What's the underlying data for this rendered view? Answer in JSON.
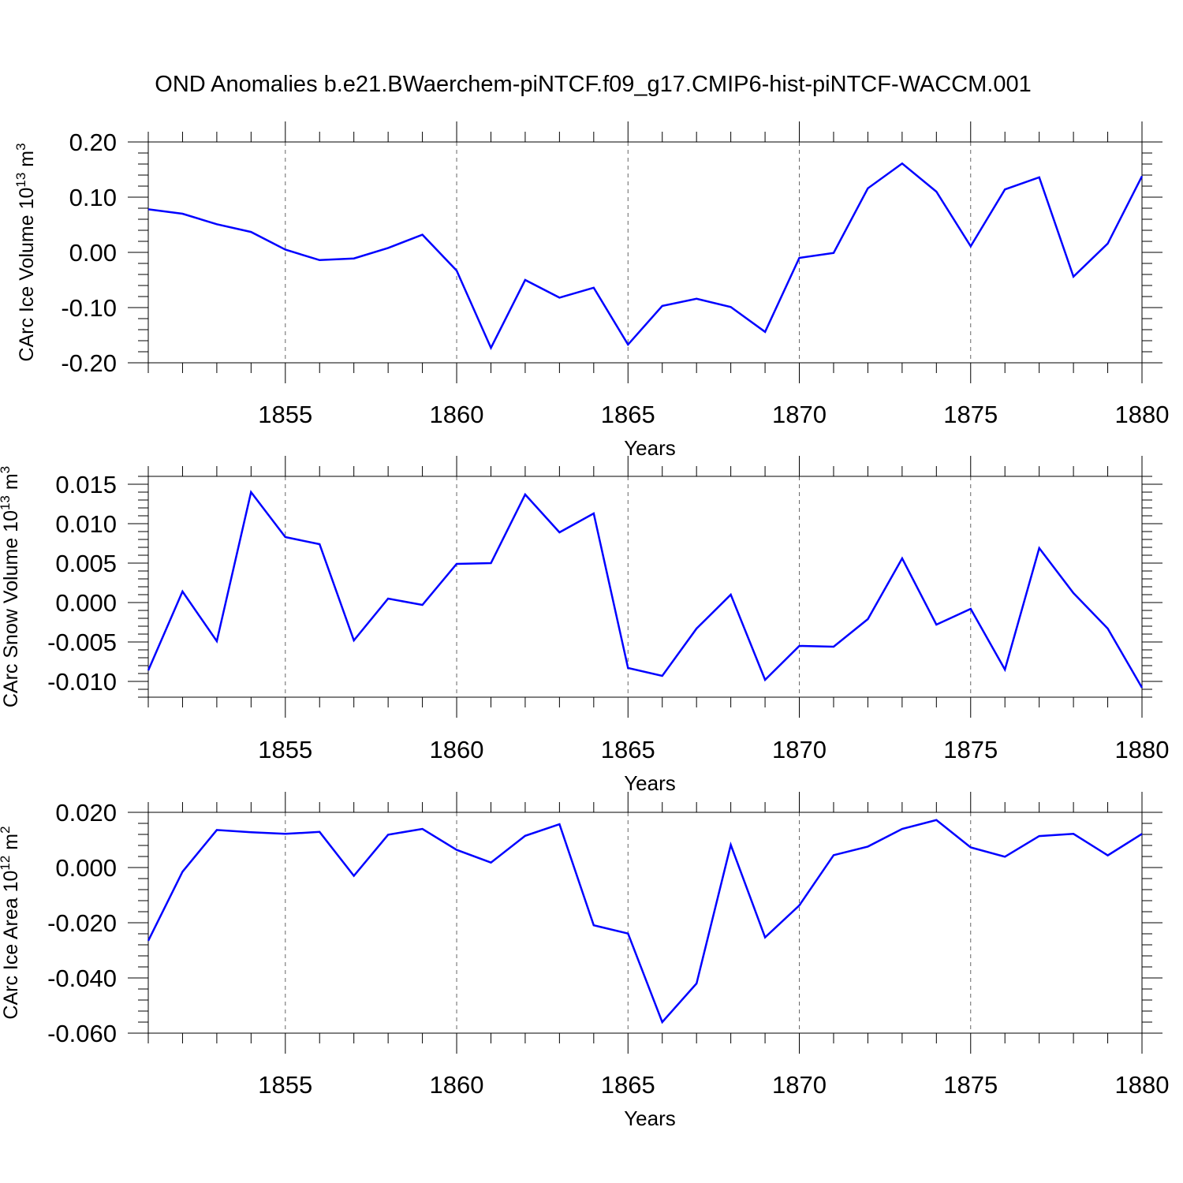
{
  "figure_title": "OND Anomalies b.e21.BWaerchem-piNTCF.f09_g17.CMIP6-hist-piNTCF-WACCM.001",
  "colors": {
    "line": "#0000ff",
    "axis": "#000000",
    "grid": "#000000"
  },
  "chart_data": [
    {
      "type": "line",
      "title": "OND Anomalies b.e21.BWaerchem-piNTCF.f09_g17.CMIP6-hist-piNTCF-WACCM.001",
      "xlabel": "Years",
      "ylabel": {
        "text": "CArc Ice Volume 10",
        "exp": "13",
        "unit": " m",
        "unit_exp": "3"
      },
      "xlim": [
        1851,
        1880
      ],
      "ylim": [
        -0.2,
        0.2
      ],
      "x_ticks": [
        1855,
        1860,
        1865,
        1870,
        1875,
        1880
      ],
      "x_tick_labels": [
        "1855",
        "1860",
        "1865",
        "1870",
        "1875",
        "1880"
      ],
      "y_ticks": [
        -0.2,
        -0.1,
        0.0,
        0.1,
        0.2
      ],
      "y_tick_labels": [
        "-0.20",
        "-0.10",
        "0.00",
        "0.10",
        "0.20"
      ],
      "grid": "vertical dashed at major x ticks",
      "x": [
        1851,
        1852,
        1853,
        1854,
        1855,
        1856,
        1857,
        1858,
        1859,
        1860,
        1861,
        1862,
        1863,
        1864,
        1865,
        1866,
        1867,
        1868,
        1869,
        1870,
        1871,
        1872,
        1873,
        1874,
        1875,
        1876,
        1877,
        1878,
        1879,
        1880
      ],
      "series": [
        {
          "name": "CArc Ice Volume",
          "values": [
            0.078,
            0.07,
            0.051,
            0.037,
            0.005,
            -0.014,
            -0.011,
            0.008,
            0.032,
            -0.033,
            -0.173,
            -0.05,
            -0.082,
            -0.064,
            -0.167,
            -0.097,
            -0.084,
            -0.099,
            -0.144,
            -0.01,
            -0.001,
            0.116,
            0.161,
            0.11,
            0.011,
            0.114,
            0.136,
            -0.044,
            0.016,
            0.138
          ]
        }
      ]
    },
    {
      "type": "line",
      "xlabel": "Years",
      "ylabel": {
        "text": "CArc Snow Volume 10",
        "exp": "13",
        "unit": " m",
        "unit_exp": "3"
      },
      "xlim": [
        1851,
        1880
      ],
      "ylim": [
        -0.012,
        0.016
      ],
      "x_ticks": [
        1855,
        1860,
        1865,
        1870,
        1875,
        1880
      ],
      "x_tick_labels": [
        "1855",
        "1860",
        "1865",
        "1870",
        "1875",
        "1880"
      ],
      "y_ticks": [
        -0.01,
        -0.005,
        0.0,
        0.005,
        0.01,
        0.015
      ],
      "y_tick_labels": [
        "-0.010",
        "-0.005",
        "0.000",
        "0.005",
        "0.010",
        "0.015"
      ],
      "grid": "vertical dashed at major x ticks",
      "x": [
        1851,
        1852,
        1853,
        1854,
        1855,
        1856,
        1857,
        1858,
        1859,
        1860,
        1861,
        1862,
        1863,
        1864,
        1865,
        1866,
        1867,
        1868,
        1869,
        1870,
        1871,
        1872,
        1873,
        1874,
        1875,
        1876,
        1877,
        1878,
        1879,
        1880
      ],
      "series": [
        {
          "name": "CArc Snow Volume",
          "values": [
            -0.0086,
            0.0014,
            -0.0049,
            0.014,
            0.0083,
            0.0074,
            -0.0048,
            0.0005,
            -0.0003,
            0.0049,
            0.005,
            0.0137,
            0.0089,
            0.0113,
            -0.0083,
            -0.0093,
            -0.0033,
            0.001,
            -0.0098,
            -0.0055,
            -0.0056,
            -0.0021,
            0.0056,
            -0.0028,
            -0.0008,
            -0.0085,
            0.0069,
            0.0012,
            -0.0033,
            -0.0108
          ]
        }
      ]
    },
    {
      "type": "line",
      "xlabel": "Years",
      "ylabel": {
        "text": "CArc Ice Area 10",
        "exp": "12",
        "unit": " m",
        "unit_exp": "2"
      },
      "xlim": [
        1851,
        1880
      ],
      "ylim": [
        -0.06,
        0.02
      ],
      "x_ticks": [
        1855,
        1860,
        1865,
        1870,
        1875,
        1880
      ],
      "x_tick_labels": [
        "1855",
        "1860",
        "1865",
        "1870",
        "1875",
        "1880"
      ],
      "y_ticks": [
        -0.06,
        -0.04,
        -0.02,
        0.0,
        0.02
      ],
      "y_tick_labels": [
        "-0.060",
        "-0.040",
        "-0.020",
        "0.000",
        "0.020"
      ],
      "grid": "vertical dashed at major x ticks",
      "x": [
        1851,
        1852,
        1853,
        1854,
        1855,
        1856,
        1857,
        1858,
        1859,
        1860,
        1861,
        1862,
        1863,
        1864,
        1865,
        1866,
        1867,
        1868,
        1869,
        1870,
        1871,
        1872,
        1873,
        1874,
        1875,
        1876,
        1877,
        1878,
        1879,
        1880
      ],
      "series": [
        {
          "name": "CArc Ice Area",
          "values": [
            -0.0265,
            -0.0015,
            0.0136,
            0.0128,
            0.0122,
            0.0129,
            -0.003,
            0.0119,
            0.014,
            0.0064,
            0.0018,
            0.0115,
            0.0157,
            -0.0209,
            -0.0239,
            -0.056,
            -0.042,
            0.0082,
            -0.0253,
            -0.0137,
            0.0045,
            0.0076,
            0.014,
            0.0172,
            0.0073,
            0.0039,
            0.0114,
            0.0122,
            0.0044,
            0.0122
          ]
        }
      ]
    }
  ]
}
